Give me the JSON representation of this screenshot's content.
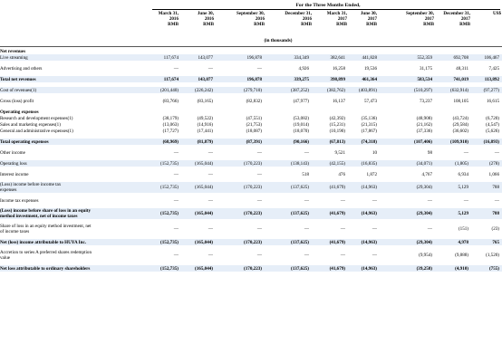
{
  "header": {
    "period_title": "For the Three Months Ended,",
    "unit_note": "(in thousands)",
    "columns": [
      {
        "date": "March 31,",
        "year": "2016",
        "cur": "RMB"
      },
      {
        "date": "June 30,",
        "year": "2016",
        "cur": "RMB"
      },
      {
        "date": "September 30,",
        "year": "2016",
        "cur": "RMB"
      },
      {
        "date": "December 31,",
        "year": "2016",
        "cur": "RMB"
      },
      {
        "date": "March 31,",
        "year": "2017",
        "cur": "RMB"
      },
      {
        "date": "June 30,",
        "year": "2017",
        "cur": "RMB"
      },
      {
        "date": "September 30,",
        "year": "2017",
        "cur": "RMB"
      },
      {
        "date": "December 31,",
        "year": "2017",
        "cur": "RMB"
      },
      {
        "date": "",
        "year": "",
        "cur": "US$"
      }
    ]
  },
  "rows": [
    {
      "label": "Net revenues",
      "style": "sec",
      "values": [
        "",
        "",
        "",
        "",
        "",
        "",
        "",
        "",
        ""
      ]
    },
    {
      "label": "Live streaming",
      "style": "shade",
      "values": [
        "117,674",
        "143,077",
        "196,878",
        "334,349",
        "382,641",
        "441,828",
        "552,359",
        "692,708",
        "106,467"
      ]
    },
    {
      "label": "",
      "style": "gap",
      "values": []
    },
    {
      "label": "Advertising and others",
      "style": "",
      "values": [
        "—",
        "—",
        "—",
        "4,926",
        "16,258",
        "19,536",
        "31,175",
        "48,311",
        "7,425"
      ]
    },
    {
      "label": "",
      "style": "gap",
      "values": []
    },
    {
      "label": "Total net revenues",
      "style": "bold shade",
      "values": [
        "117,674",
        "143,077",
        "196,878",
        "339,275",
        "398,899",
        "461,364",
        "583,534",
        "741,019",
        "113,892"
      ]
    },
    {
      "label": "",
      "style": "gap",
      "values": []
    },
    {
      "label": "Cost of revenues(1)",
      "style": "shade",
      "values": [
        "(201,440)",
        "(226,242)",
        "(279,710)",
        "(387,252)",
        "(382,762)",
        "(403,891)",
        "(510,297)",
        "(632,914)",
        "(97,277)"
      ]
    },
    {
      "label": "",
      "style": "gap",
      "values": []
    },
    {
      "label": "Gross (loss) profit",
      "style": "",
      "values": [
        "(83,766)",
        "(83,165)",
        "(82,832)",
        "(47,977)",
        "16,137",
        "57,473",
        "73,237",
        "108,105",
        "16,615"
      ]
    },
    {
      "label": "",
      "style": "gap",
      "values": []
    },
    {
      "label": "Operating expenses",
      "style": "sec",
      "values": [
        "",
        "",
        "",
        "",
        "",
        "",
        "",
        "",
        ""
      ]
    },
    {
      "label": "Research and development expenses(1)",
      "style": "",
      "values": [
        "(38,179)",
        "(49,522)",
        "(47,551)",
        "(53,082)",
        "(42,392)",
        "(35,136)",
        "(48,908)",
        "(43,724)",
        "(6,720)"
      ]
    },
    {
      "label": "Sales and marketing expenses(1)",
      "style": "",
      "values": [
        "(13,063)",
        "(14,916)",
        "(21,753)",
        "(19,014)",
        "(15,231)",
        "(21,315)",
        "(21,162)",
        "(29,584)",
        "(4,547)"
      ]
    },
    {
      "label": "General and administrative expenses(1)",
      "style": "",
      "values": [
        "(17,727)",
        "(17,441)",
        "(18,087)",
        "(18,070)",
        "(10,190)",
        "(17,867)",
        "(37,336)",
        "(36,602)",
        "(5,626)"
      ]
    },
    {
      "label": "",
      "style": "gap",
      "values": []
    },
    {
      "label": "Total operating expenses",
      "style": "bold shade",
      "values": [
        "(68,969)",
        "(81,879)",
        "(87,391)",
        "(90,166)",
        "(67,813)",
        "(74,318)",
        "(107,406)",
        "(109,910)",
        "(16,893)"
      ]
    },
    {
      "label": "",
      "style": "gap",
      "values": []
    },
    {
      "label": "Other income",
      "style": "",
      "values": [
        "—",
        "—",
        "—",
        "—",
        "9,521",
        "10",
        "98",
        "—",
        "—"
      ]
    },
    {
      "label": "",
      "style": "gap",
      "values": []
    },
    {
      "label": "Operating loss",
      "style": "shade",
      "values": [
        "(152,735)",
        "(165,044)",
        "(170,223)",
        "(138,143)",
        "(42,155)",
        "(16,835)",
        "(34,071)",
        "(1,805)",
        "(278)"
      ]
    },
    {
      "label": "",
      "style": "gap",
      "values": []
    },
    {
      "label": "Interest income",
      "style": "",
      "values": [
        "—",
        "—",
        "—",
        "518",
        "476",
        "1,872",
        "4,767",
        "6,934",
        "1,066"
      ]
    },
    {
      "label": "",
      "style": "gap",
      "values": []
    },
    {
      "label": "(Loss) income before income tax",
      "label2": "expenses",
      "style": "shade",
      "values": [
        "(152,735)",
        "(165,044)",
        "(170,223)",
        "(137,625)",
        "(41,679)",
        "(14,963)",
        "(29,304)",
        "5,129",
        "788"
      ]
    },
    {
      "label": "",
      "style": "gap",
      "values": []
    },
    {
      "label": "Income tax expenses",
      "style": "",
      "values": [
        "—",
        "—",
        "—",
        "—",
        "—",
        "—",
        "—",
        "—",
        "—"
      ]
    },
    {
      "label": "",
      "style": "gap",
      "values": []
    },
    {
      "label": "(Loss) income before share of loss in an equity",
      "label2": "method investment, net of income taxes",
      "style": "bold shade",
      "values": [
        "(152,735)",
        "(165,044)",
        "(170,223)",
        "(137,625)",
        "(41,679)",
        "(14,963)",
        "(29,304)",
        "5,129",
        "788"
      ]
    },
    {
      "label": "",
      "style": "gap",
      "values": []
    },
    {
      "label": "Share of loss in an equity method investment, net",
      "label2": "of income taxes",
      "style": "",
      "values": [
        "—",
        "—",
        "—",
        "—",
        "—",
        "—",
        "—",
        "(151)",
        "(23)"
      ]
    },
    {
      "label": "",
      "style": "gap",
      "values": []
    },
    {
      "label": "Net (loss) income attributable to HUYA Inc.",
      "style": "bold shade",
      "values": [
        "(152,735)",
        "(165,044)",
        "(170,223)",
        "(137,625)",
        "(41,679)",
        "(14,963)",
        "(29,304)",
        "4,978",
        "765"
      ]
    },
    {
      "label": "",
      "style": "gap",
      "values": []
    },
    {
      "label": "Accretion to series A preferred shares redemption",
      "label2": "value",
      "style": "",
      "values": [
        "—",
        "—",
        "—",
        "—",
        "—",
        "—",
        "(9,954)",
        "(9,888)",
        "(1,520)"
      ]
    },
    {
      "label": "",
      "style": "gap",
      "values": []
    },
    {
      "label": "Net loss attributable to ordinary shareholders",
      "style": "bold shade",
      "values": [
        "(152,735)",
        "(165,044)",
        "(170,223)",
        "(137,625)",
        "(41,679)",
        "(14,963)",
        "(39,258)",
        "(4,910)",
        "(755)"
      ]
    }
  ]
}
